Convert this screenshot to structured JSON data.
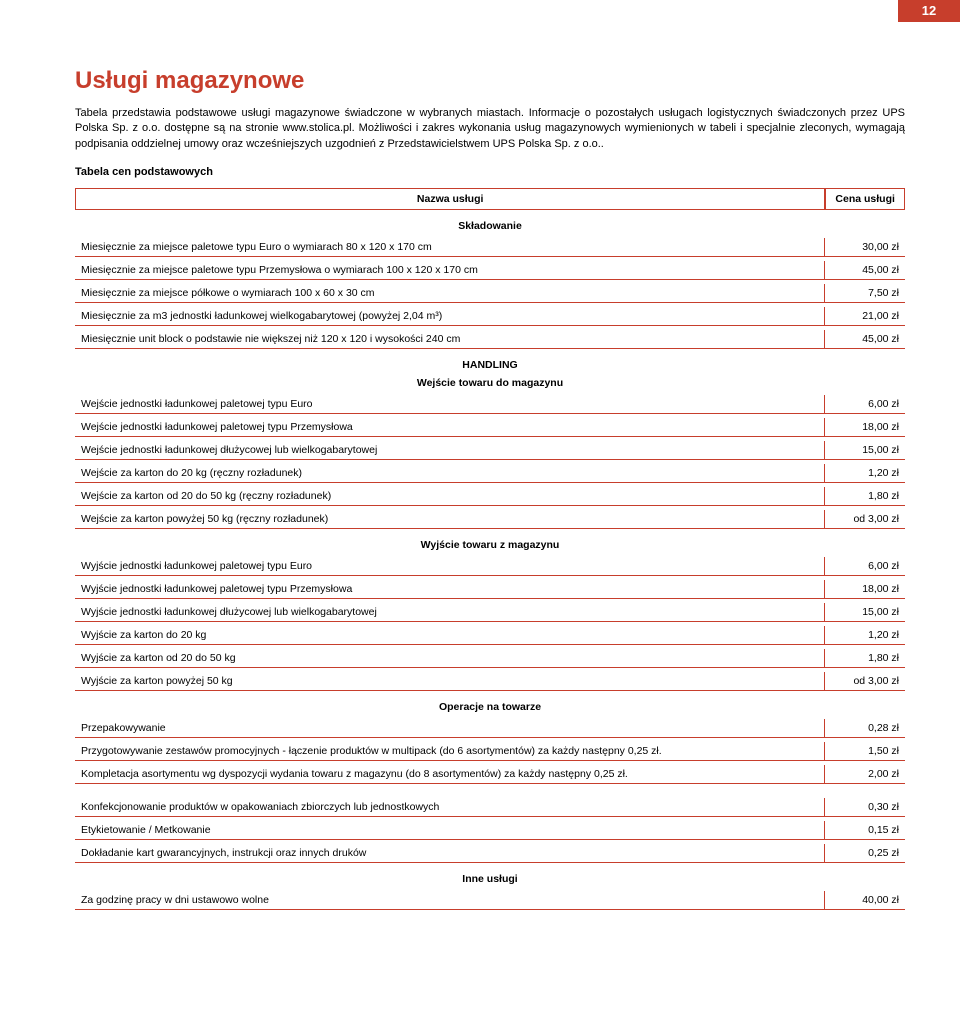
{
  "page_number": "12",
  "title": "Usługi magazynowe",
  "intro": "Tabela przedstawia podstawowe usługi magazynowe świadczone w wybranych miastach. Informacje o pozostałych usługach logistycznych świadczonych przez UPS Polska Sp. z o.o. dostępne są na stronie www.stolica.pl. Możliwości i zakres wykonania usług magazynowych wymienionych w tabeli i specjalnie zleconych, wymagają podpisania oddzielnej umowy oraz wcześniejszych uzgodnień z Przedstawicielstwem UPS Polska Sp. z o.o..",
  "table_subhead": "Tabela cen podstawowych",
  "header": {
    "name": "Nazwa usługi",
    "price": "Cena usługi"
  },
  "sections": [
    {
      "heading1": "Składowanie",
      "heading2": "",
      "rows": [
        {
          "name": "Miesięcznie za miejsce paletowe typu Euro o wymiarach 80 x 120 x 170 cm",
          "price": "30,00 zł"
        },
        {
          "name": "Miesięcznie za miejsce paletowe typu Przemysłowa o wymiarach 100 x 120 x 170 cm",
          "price": "45,00 zł"
        },
        {
          "name": "Miesięcznie za miejsce półkowe o wymiarach 100 x 60 x 30 cm",
          "price": "7,50 zł"
        },
        {
          "name": "Miesięcznie za m3 jednostki ładunkowej wielkogabarytowej (powyżej 2,04 m³)",
          "price": "21,00 zł"
        },
        {
          "name": "Miesięcznie unit block o podstawie nie większej niż 120 x 120 i wysokości 240 cm",
          "price": "45,00 zł"
        }
      ]
    },
    {
      "heading1": "HANDLING",
      "heading2": "Wejście towaru do magazynu",
      "rows": [
        {
          "name": "Wejście jednostki ładunkowej paletowej typu Euro",
          "price": "6,00 zł"
        },
        {
          "name": "Wejście jednostki ładunkowej paletowej typu Przemysłowa",
          "price": "18,00 zł"
        },
        {
          "name": "Wejście jednostki ładunkowej dłużycowej lub wielkogabarytowej",
          "price": "15,00 zł"
        },
        {
          "name": "Wejście za karton do 20 kg (ręczny rozładunek)",
          "price": "1,20 zł"
        },
        {
          "name": "Wejście za karton od 20 do 50 kg (ręczny rozładunek)",
          "price": "1,80 zł"
        },
        {
          "name": "Wejście za karton powyżej 50 kg (ręczny rozładunek)",
          "price": "od 3,00 zł"
        }
      ]
    },
    {
      "heading1": "Wyjście towaru z magazynu",
      "heading2": "",
      "rows": [
        {
          "name": "Wyjście jednostki ładunkowej paletowej typu Euro",
          "price": "6,00 zł"
        },
        {
          "name": "Wyjście jednostki ładunkowej paletowej typu Przemysłowa",
          "price": "18,00 zł"
        },
        {
          "name": "Wyjście jednostki ładunkowej dłużycowej lub wielkogabarytowej",
          "price": "15,00 zł"
        },
        {
          "name": "Wyjście za karton do 20 kg",
          "price": "1,20 zł"
        },
        {
          "name": "Wyjście za karton od 20 do 50 kg",
          "price": "1,80 zł"
        },
        {
          "name": "Wyjście za karton powyżej 50 kg",
          "price": "od 3,00 zł"
        }
      ]
    },
    {
      "heading1": "Operacje na towarze",
      "heading2": "",
      "rows": [
        {
          "name": "Przepakowywanie",
          "price": "0,28 zł"
        },
        {
          "name": "Przygotowywanie zestawów promocyjnych - łączenie produktów w multipack (do 6 asortymentów) za każdy następny 0,25 zł.",
          "price": "1,50 zł"
        },
        {
          "name": "Kompletacja asortymentu wg dyspozycji wydania towaru z magazynu (do 8 asortymentów) za każdy następny 0,25 zł.",
          "price": "2,00 zł"
        }
      ],
      "gap_after": 2
    },
    {
      "heading1": "",
      "heading2": "",
      "rows": [
        {
          "name": "Konfekcjonowanie produktów w opakowaniach zbiorczych lub jednostkowych",
          "price": "0,30 zł"
        },
        {
          "name": "Etykietowanie / Metkowanie",
          "price": "0,15 zł"
        },
        {
          "name": "Dokładanie kart gwarancyjnych, instrukcji oraz innych druków",
          "price": "0,25 zł"
        }
      ]
    },
    {
      "heading1": "Inne usługi",
      "heading2": "",
      "rows": [
        {
          "name": "Za godzinę pracy w dni ustawowo wolne",
          "price": "40,00 zł"
        }
      ]
    }
  ],
  "colors": {
    "accent": "#c73e2c",
    "text": "#000000",
    "background": "#ffffff"
  }
}
